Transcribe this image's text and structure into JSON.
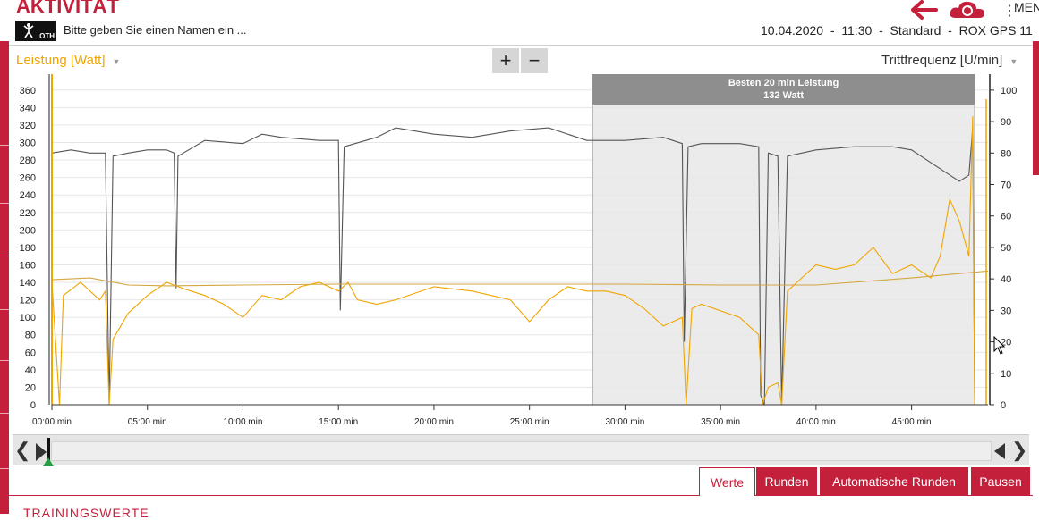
{
  "header": {
    "title": "AKTIVITÄT",
    "logo_text": "OTH",
    "name_prompt": "Bitte geben Sie einen Namen ein ...",
    "date": "10.04.2020",
    "time": "11:30",
    "profile": "Standard",
    "device": "ROX GPS 11",
    "menu_label": "MEN",
    "icons": [
      "back-arrow-icon",
      "cloud-sync-icon",
      "menu-dots-icon"
    ]
  },
  "chart_controls": {
    "left_axis_label": "Leistung [Watt]",
    "right_axis_label": "Trittfrequenz [U/min]",
    "zoom_in": "+",
    "zoom_out": "−"
  },
  "chart_data": {
    "type": "line",
    "x_unit": "min",
    "x_range": [
      0,
      49
    ],
    "x_ticks": [
      "00:00 min",
      "05:00 min",
      "10:00 min",
      "15:00 min",
      "20:00 min",
      "25:00 min",
      "30:00 min",
      "35:00 min",
      "40:00 min",
      "45:00 min"
    ],
    "y_left": {
      "label": "Leistung [Watt]",
      "range": [
        0,
        370
      ],
      "ticks": [
        "0",
        "20",
        "40",
        "60",
        "80",
        "100",
        "120",
        "140",
        "160",
        "180",
        "200",
        "220",
        "240",
        "260",
        "280",
        "300",
        "320",
        "340",
        "360"
      ]
    },
    "y_right": {
      "label": "Trittfrequenz [U/min]",
      "range": [
        0,
        102.8
      ],
      "ticks": [
        "0",
        "10",
        "20",
        "30",
        "40",
        "50",
        "60",
        "70",
        "80",
        "90",
        "100"
      ]
    },
    "highlight": {
      "label": "Besten 20 min Leistung",
      "value": "132 Watt",
      "x_range": [
        28.3,
        48.3
      ]
    },
    "series": [
      {
        "axis": "right",
        "color": "#555555",
        "points": [
          [
            0,
            80
          ],
          [
            1,
            81
          ],
          [
            2,
            80
          ],
          [
            2.8,
            80
          ],
          [
            3,
            0
          ],
          [
            3.2,
            79
          ],
          [
            4,
            80
          ],
          [
            5,
            81
          ],
          [
            6,
            81
          ],
          [
            6.4,
            80
          ],
          [
            6.5,
            37
          ],
          [
            6.6,
            79
          ],
          [
            8,
            84
          ],
          [
            10,
            83
          ],
          [
            11,
            86
          ],
          [
            12,
            85
          ],
          [
            14,
            84
          ],
          [
            15,
            84
          ],
          [
            15.1,
            30
          ],
          [
            15.3,
            82
          ],
          [
            17,
            85
          ],
          [
            18,
            88
          ],
          [
            20,
            86
          ],
          [
            22,
            85
          ],
          [
            24,
            87
          ],
          [
            26,
            88
          ],
          [
            28,
            84
          ],
          [
            30,
            84
          ],
          [
            32,
            85
          ],
          [
            33,
            83
          ],
          [
            33.1,
            20
          ],
          [
            33.3,
            82
          ],
          [
            34,
            83
          ],
          [
            36,
            83
          ],
          [
            37,
            82
          ],
          [
            37.1,
            3
          ],
          [
            37.3,
            0
          ],
          [
            37.5,
            80
          ],
          [
            38,
            79
          ],
          [
            38.2,
            0
          ],
          [
            38.5,
            79
          ],
          [
            40,
            81
          ],
          [
            42,
            82
          ],
          [
            44,
            82
          ],
          [
            45,
            81
          ],
          [
            46,
            77
          ],
          [
            47,
            73
          ],
          [
            47.5,
            71
          ],
          [
            48,
            73
          ],
          [
            48.2,
            88
          ],
          [
            48.3,
            0
          ]
        ]
      },
      {
        "axis": "left",
        "color": "#f0a500",
        "points": [
          [
            0,
            140
          ],
          [
            0.4,
            0
          ],
          [
            0.6,
            125
          ],
          [
            1.5,
            140
          ],
          [
            2.5,
            120
          ],
          [
            2.8,
            130
          ],
          [
            3,
            0
          ],
          [
            3.2,
            75
          ],
          [
            4,
            105
          ],
          [
            5,
            125
          ],
          [
            6,
            140
          ],
          [
            7,
            132
          ],
          [
            8,
            125
          ],
          [
            9,
            115
          ],
          [
            10,
            100
          ],
          [
            11,
            125
          ],
          [
            12,
            120
          ],
          [
            13,
            135
          ],
          [
            14,
            140
          ],
          [
            15,
            130
          ],
          [
            15.5,
            140
          ],
          [
            16,
            120
          ],
          [
            17,
            115
          ],
          [
            18,
            120
          ],
          [
            20,
            135
          ],
          [
            22,
            130
          ],
          [
            24,
            120
          ],
          [
            25,
            95
          ],
          [
            26,
            120
          ],
          [
            27,
            135
          ],
          [
            28,
            130
          ],
          [
            29,
            130
          ],
          [
            30,
            125
          ],
          [
            31,
            110
          ],
          [
            32,
            90
          ],
          [
            33,
            100
          ],
          [
            33.2,
            0
          ],
          [
            33.5,
            110
          ],
          [
            34,
            115
          ],
          [
            36,
            100
          ],
          [
            37,
            80
          ],
          [
            37.2,
            0
          ],
          [
            37.5,
            20
          ],
          [
            38,
            25
          ],
          [
            38.2,
            0
          ],
          [
            38.5,
            130
          ],
          [
            39,
            140
          ],
          [
            40,
            160
          ],
          [
            41,
            155
          ],
          [
            42,
            160
          ],
          [
            43,
            180
          ],
          [
            44,
            150
          ],
          [
            45,
            160
          ],
          [
            46,
            145
          ],
          [
            46.5,
            170
          ],
          [
            47,
            235
          ],
          [
            47.5,
            210
          ],
          [
            48,
            170
          ],
          [
            48.2,
            330
          ],
          [
            48.3,
            0
          ]
        ]
      },
      {
        "axis": "left",
        "color": "#d4a640",
        "points": [
          [
            0,
            143
          ],
          [
            2,
            145
          ],
          [
            4,
            137
          ],
          [
            6,
            136
          ],
          [
            10,
            137
          ],
          [
            15,
            138
          ],
          [
            20,
            138
          ],
          [
            25,
            138
          ],
          [
            30,
            138
          ],
          [
            35,
            137
          ],
          [
            40,
            137
          ],
          [
            45,
            145
          ],
          [
            49,
            153
          ]
        ]
      }
    ]
  },
  "timeline": {
    "left_arrow": "❮",
    "right_arrow": "❯"
  },
  "tabs": [
    "Werte",
    "Runden",
    "Automatische Runden",
    "Pausen"
  ],
  "section_label": "TRAININGSWERTE"
}
